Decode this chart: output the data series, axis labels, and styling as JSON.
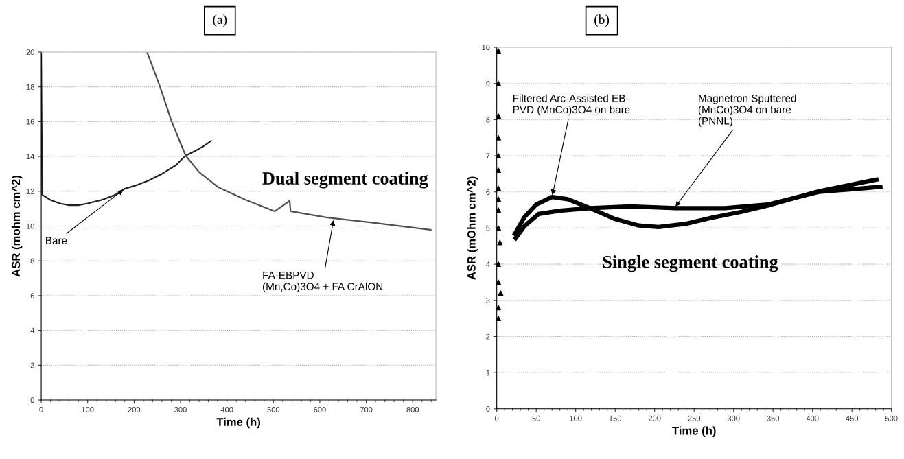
{
  "chart_data": [
    {
      "type": "line",
      "xlabel": "Time (h)",
      "ylabel": "ASR (mohm cm^2)",
      "xlim": [
        0,
        850
      ],
      "xticks": [
        0,
        100,
        200,
        300,
        400,
        500,
        600,
        700,
        800
      ],
      "ylim": [
        0,
        20
      ],
      "yticks": [
        0,
        2,
        4,
        6,
        8,
        10,
        12,
        14,
        16,
        18,
        20
      ],
      "grid": "y",
      "legend": false,
      "marker": "none",
      "line_style": "solid",
      "series": [
        {
          "color": "#202020",
          "x": [
            0,
            2,
            20,
            40,
            60,
            80,
            100,
            130,
            160,
            180,
            200,
            230,
            260,
            290,
            311,
            330,
            350,
            366
          ],
          "values": [
            20,
            11.8,
            11.5,
            11.3,
            11.2,
            11.2,
            11.3,
            11.5,
            11.8,
            12.15,
            12.3,
            12.6,
            13.0,
            13.5,
            14.05,
            14.3,
            14.6,
            14.9
          ]
        },
        {
          "color": "#505050",
          "x": [
            228,
            256,
            281,
            311,
            340,
            380,
            441,
            503,
            535,
            537,
            614,
            712,
            839
          ],
          "values": [
            20,
            18.0,
            16.0,
            14.05,
            13.1,
            12.25,
            11.5,
            10.85,
            11.45,
            10.85,
            10.5,
            10.2,
            9.78
          ]
        }
      ],
      "annotations": [
        "(a)",
        "Dual segment coating",
        {
          "text": "Bare",
          "x": 180,
          "y": 12.15
        },
        {
          "text": "FA-EBPVD\n(Mn,Co)3O4 + FA CrAlON",
          "x": 630,
          "y": 10.45
        }
      ]
    },
    {
      "type": "line",
      "xlabel": "Time (h)",
      "ylabel": "ASR (mOhm cm^2)",
      "xlim": [
        0,
        500
      ],
      "xticks": [
        0,
        50,
        100,
        150,
        200,
        250,
        300,
        350,
        400,
        450,
        500
      ],
      "ylim": [
        0,
        10
      ],
      "yticks": [
        0,
        1,
        2,
        3,
        4,
        5,
        6,
        7,
        8,
        9,
        10
      ],
      "grid": "y",
      "legend": false,
      "marker": "none",
      "line_style": "solid",
      "series": [
        {
          "type": "scatter",
          "marker": "triangle",
          "color": "#000000",
          "x": [
            2,
            2,
            2,
            2,
            2,
            2,
            2,
            2,
            2,
            2,
            4,
            2,
            2,
            5,
            2,
            2
          ],
          "values": [
            9.9,
            9.0,
            8.1,
            7.5,
            7.0,
            6.6,
            6.1,
            5.8,
            5.5,
            5.0,
            4.6,
            4.0,
            3.5,
            3.2,
            2.8,
            2.5
          ]
        },
        {
          "color": "#000000",
          "x": [
            23,
            35,
            50,
            70,
            90,
            118,
            150,
            180,
            205,
            240,
            271,
            310,
            343,
            408,
            481
          ],
          "values": [
            4.84,
            5.3,
            5.65,
            5.86,
            5.8,
            5.55,
            5.25,
            5.07,
            5.03,
            5.12,
            5.28,
            5.45,
            5.62,
            6.02,
            6.34
          ]
        },
        {
          "color": "#000000",
          "x": [
            24,
            35,
            53,
            80,
            118,
            169,
            227,
            289,
            343,
            408,
            486
          ],
          "values": [
            4.72,
            5.05,
            5.39,
            5.48,
            5.55,
            5.6,
            5.55,
            5.55,
            5.65,
            6.0,
            6.14
          ]
        }
      ],
      "annotations": [
        "(b)",
        "Single segment coating",
        {
          "text": "Filtered Arc-Assisted EB-\nPVD (MnCo)3O4 on bare",
          "x": 70,
          "y": 5.86
        },
        {
          "text": "Magnetron Sputtered\n(MnCo)3O4 on bare\n(PNNL)",
          "x": 225,
          "y": 5.55
        }
      ]
    }
  ]
}
